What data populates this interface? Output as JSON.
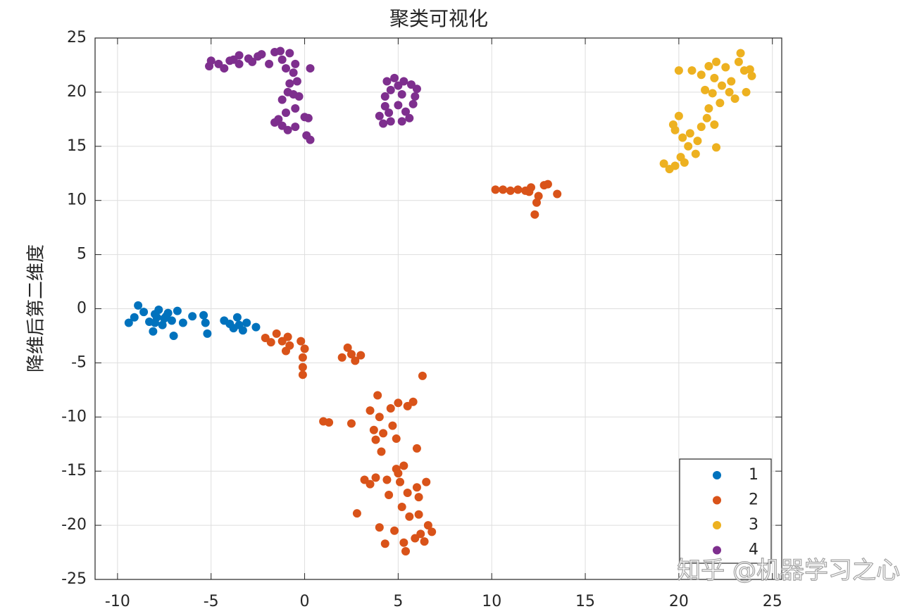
{
  "chart_data": {
    "type": "scatter",
    "title": "聚类可视化",
    "y_label": "降维后第二维度",
    "watermark": "知乎 @机器学习之心",
    "xlim": [
      -11.2,
      25.5
    ],
    "ylim": [
      -25,
      25
    ],
    "xticks": [
      -10,
      -5,
      0,
      5,
      10,
      15,
      20,
      25
    ],
    "yticks": [
      -25,
      -20,
      -15,
      -10,
      -5,
      0,
      5,
      10,
      15,
      20,
      25
    ],
    "grid": true,
    "legend": "lower right",
    "series": [
      {
        "name": "1",
        "color": "#0072bd",
        "x": [
          -9.4,
          -9.1,
          -8.9,
          -8.6,
          -8.3,
          -8.1,
          -8.0,
          -7.8,
          -7.6,
          -7.5,
          -7.3,
          -7.1,
          -7.0,
          -6.8,
          -6.5,
          -6.0,
          -5.4,
          -5.3,
          -5.2,
          -4.3,
          -4.0,
          -3.8,
          -3.6,
          -3.5,
          -3.3,
          -3.1,
          -2.6,
          -7.9,
          -8.0,
          -7.4
        ],
        "values": [
          -1.3,
          -0.8,
          0.3,
          -0.3,
          -1.2,
          -2.1,
          -0.5,
          -0.1,
          -1.5,
          -0.9,
          -0.4,
          -1.1,
          -2.5,
          -0.2,
          -1.3,
          -0.7,
          -0.6,
          -1.3,
          -2.3,
          -1.1,
          -1.4,
          -1.8,
          -0.8,
          -1.5,
          -2.0,
          -1.3,
          -1.7,
          -0.8,
          -1.3,
          -0.7
        ]
      },
      {
        "name": "2",
        "color": "#d95319",
        "x": [
          -2.1,
          -1.8,
          -1.5,
          -1.2,
          -0.9,
          -1.0,
          -0.8,
          -0.2,
          0,
          -0.1,
          -0.1,
          -0.1,
          1.0,
          1.3,
          2.0,
          2.3,
          2.5,
          2.7,
          3.0,
          2.5,
          2.8,
          3.2,
          3.5,
          3.5,
          3.7,
          3.8,
          4.0,
          4.1,
          3.9,
          4.2,
          4.4,
          4.5,
          4.6,
          4.7,
          4.9,
          5.0,
          5.0,
          5.1,
          5.2,
          5.3,
          5.4,
          5.5,
          5.5,
          5.6,
          5.8,
          6.0,
          6.1,
          6.2,
          6.3,
          6.5,
          6.6,
          6.8,
          4.0,
          4.3,
          4.8,
          5.9,
          6.4,
          6.1,
          3.8,
          4.9,
          5.3,
          6.0,
          10.2,
          10.6,
          11.0,
          11.4,
          11.8,
          12.1,
          12.4,
          12.3,
          12.5,
          12.8,
          13.0,
          13.5,
          12.0
        ],
        "values": [
          -2.7,
          -3.1,
          -2.3,
          -3.0,
          -2.6,
          -3.9,
          -3.4,
          -3.0,
          -3.7,
          -4.5,
          -5.4,
          -6.1,
          -10.4,
          -10.5,
          -4.5,
          -3.6,
          -4.2,
          -4.8,
          -4.3,
          -10.6,
          -18.9,
          -15.8,
          -16.2,
          -9.4,
          -11.2,
          -12.1,
          -10.0,
          -13.2,
          -8.0,
          -11.5,
          -15.8,
          -17.2,
          -9.2,
          -10.8,
          -12.0,
          -8.7,
          -15.2,
          -16.0,
          -18.3,
          -21.6,
          -22.4,
          -17.0,
          -9.0,
          -19.2,
          -8.6,
          -12.9,
          -17.4,
          -20.8,
          -6.2,
          -16.0,
          -20.0,
          -20.6,
          -20.2,
          -21.7,
          -20.5,
          -21.2,
          -21.5,
          -19.0,
          -15.6,
          -14.8,
          -14.5,
          -16.5,
          11.0,
          11.0,
          10.9,
          11.0,
          10.9,
          11.2,
          9.8,
          8.7,
          10.4,
          11.4,
          11.5,
          10.6,
          10.8
        ]
      },
      {
        "name": "3",
        "color": "#edb120",
        "x": [
          19.2,
          19.5,
          19.8,
          20.1,
          20.3,
          20.5,
          20.2,
          19.8,
          19.7,
          20.0,
          20.6,
          20.9,
          21.0,
          21.2,
          21.5,
          21.9,
          21.6,
          22.0,
          21.8,
          22.2,
          21.9,
          22.3,
          22.5,
          22.8,
          23.0,
          23.2,
          23.3,
          23.5,
          23.8,
          23.6,
          20.0,
          20.7,
          21.2,
          21.6,
          22.0,
          22.7,
          23.9,
          21.4
        ],
        "values": [
          13.4,
          12.9,
          13.2,
          14.0,
          13.5,
          15.0,
          15.8,
          16.5,
          17.0,
          17.8,
          16.2,
          14.3,
          15.5,
          16.8,
          17.6,
          17.0,
          18.5,
          14.9,
          19.9,
          19.0,
          21.3,
          20.6,
          22.3,
          21.0,
          19.4,
          22.8,
          23.6,
          22.0,
          22.1,
          20.0,
          22.0,
          22.0,
          21.6,
          22.4,
          22.8,
          20.0,
          21.5,
          20.2
        ]
      },
      {
        "name": "4",
        "color": "#7e2f8e",
        "x": [
          -5.1,
          -5.0,
          -4.6,
          -4.3,
          -4.0,
          -3.8,
          -3.5,
          -3.5,
          -3.0,
          -2.8,
          -2.5,
          -2.3,
          -1.9,
          -1.6,
          -1.3,
          -1.2,
          -1.0,
          -0.8,
          -0.5,
          -0.6,
          -0.8,
          -0.9,
          -1.2,
          -0.6,
          -0.4,
          -0.3,
          -0.5,
          -1.0,
          -1.4,
          -1.2,
          -0.9,
          -0.5,
          0.0,
          0.2,
          0.1,
          0.3,
          0.3,
          -1.6,
          4.2,
          4.0,
          4.3,
          4.5,
          4.3,
          4.6,
          4.4,
          4.8,
          5.0,
          5.2,
          5.0,
          5.4,
          5.2,
          5.6,
          5.8,
          5.9,
          6.0,
          5.7,
          5.3,
          4.6
        ],
        "values": [
          22.4,
          22.9,
          22.6,
          22.2,
          22.9,
          23.0,
          23.4,
          22.6,
          23.1,
          22.8,
          23.3,
          23.5,
          22.6,
          23.7,
          23.8,
          23.0,
          22.2,
          23.6,
          22.6,
          21.8,
          20.8,
          20.0,
          19.3,
          19.8,
          21.0,
          19.6,
          18.5,
          18.1,
          17.5,
          16.9,
          16.5,
          16.8,
          17.7,
          17.6,
          16.0,
          15.6,
          22.2,
          17.2,
          17.1,
          17.8,
          18.7,
          18.1,
          19.6,
          20.2,
          21.0,
          21.3,
          20.6,
          19.8,
          18.8,
          18.2,
          17.3,
          17.6,
          18.9,
          19.6,
          20.3,
          20.7,
          21.0,
          17.3
        ]
      }
    ]
  }
}
